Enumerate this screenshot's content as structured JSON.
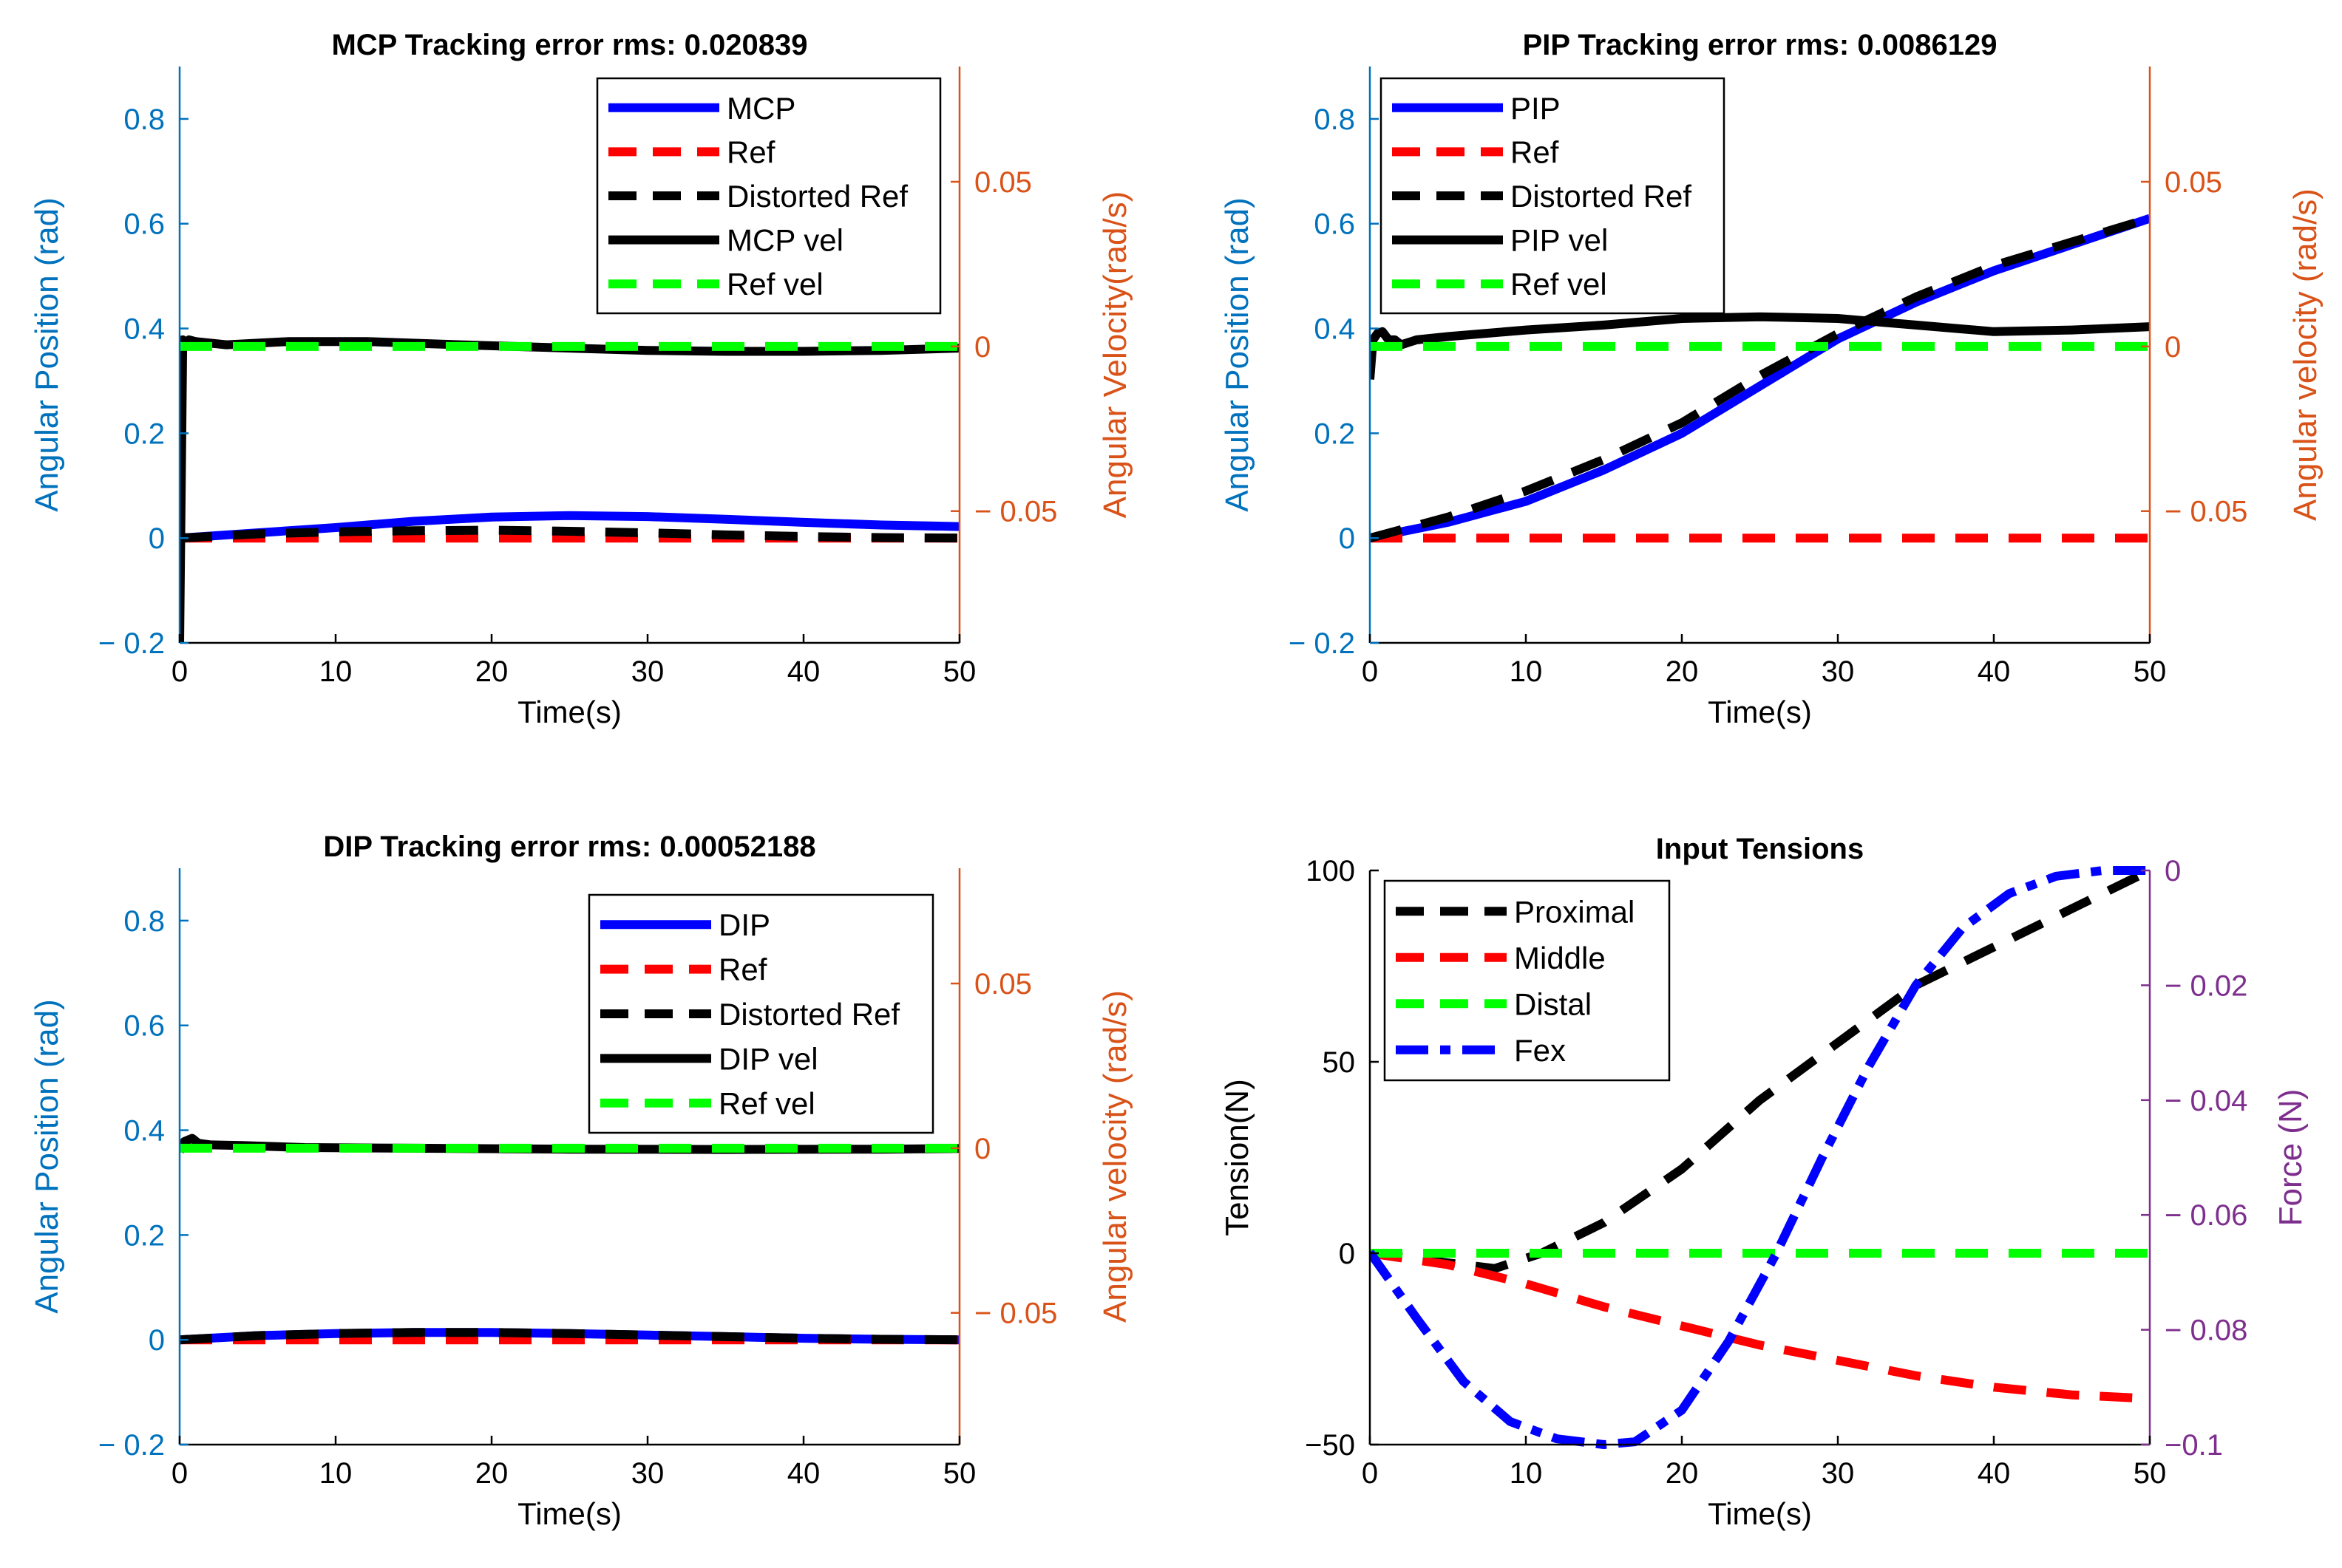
{
  "colors": {
    "blue": "#0000ff",
    "red": "#ff0000",
    "black": "#000000",
    "green": "#00ff00",
    "left_axis": "#0072bd",
    "right_axis": "#d95319",
    "force_axis": "#7e2f8e"
  },
  "chart_data": [
    {
      "id": "mcp",
      "type": "line",
      "title": "MCP Tracking error rms: 0.020839",
      "xlabel": "Time(s)",
      "ylabel": "Angular Position (rad)",
      "y2label": "Angular Velocity(rad/s)",
      "xlim": [
        0,
        50
      ],
      "ylim": [
        -0.2,
        0.9
      ],
      "y2lim": [
        -0.09,
        0.085
      ],
      "xticks": [
        0,
        10,
        20,
        30,
        40,
        50
      ],
      "xtick_labels": [
        "0",
        "10",
        "20",
        "30",
        "40",
        "50"
      ],
      "yticks": [
        -0.2,
        0,
        0.2,
        0.4,
        0.6,
        0.8
      ],
      "ytick_labels": [
        "− 0.2",
        "0",
        "0.2",
        "0.4",
        "0.6",
        "0.8"
      ],
      "y2ticks": [
        -0.05,
        0,
        0.05
      ],
      "y2tick_labels": [
        "− 0.05",
        "0",
        "0.05"
      ],
      "legend_position": "top-right",
      "series": [
        {
          "name": "MCP",
          "axis": "left",
          "color": "blue",
          "style": "solid",
          "x": [
            0,
            5,
            10,
            15,
            20,
            25,
            30,
            35,
            40,
            45,
            50
          ],
          "y": [
            0,
            0.01,
            0.02,
            0.032,
            0.04,
            0.043,
            0.041,
            0.036,
            0.03,
            0.025,
            0.022
          ]
        },
        {
          "name": "Ref",
          "axis": "left",
          "color": "red",
          "style": "dashed",
          "x": [
            0,
            50
          ],
          "y": [
            0,
            0
          ]
        },
        {
          "name": "Distorted Ref",
          "axis": "left",
          "color": "black",
          "style": "dashed",
          "x": [
            0,
            5,
            10,
            15,
            20,
            25,
            30,
            35,
            40,
            45,
            50
          ],
          "y": [
            0,
            0.008,
            0.012,
            0.014,
            0.015,
            0.013,
            0.01,
            0.006,
            0.003,
            0.001,
            0
          ]
        },
        {
          "name": "MCP vel",
          "axis": "right",
          "color": "black",
          "style": "solid",
          "x": [
            0,
            0.2,
            0.4,
            0.6,
            1,
            3,
            7,
            12,
            18,
            25,
            30,
            35,
            40,
            45,
            50
          ],
          "y": [
            -0.09,
            0.002,
            0.001,
            0.002,
            0.0015,
            0.0005,
            0.0015,
            0.0015,
            0.0005,
            -0.0005,
            -0.0012,
            -0.0015,
            -0.0015,
            -0.0012,
            -0.0005
          ]
        },
        {
          "name": "Ref vel",
          "axis": "right",
          "color": "green",
          "style": "dashed",
          "x": [
            0,
            50
          ],
          "y": [
            0,
            0
          ]
        }
      ]
    },
    {
      "id": "pip",
      "type": "line",
      "title": "PIP Tracking error rms: 0.0086129",
      "xlabel": "Time(s)",
      "ylabel": "Angular Position (rad)",
      "y2label": "Angular velocity (rad/s)",
      "xlim": [
        0,
        50
      ],
      "ylim": [
        -0.2,
        0.9
      ],
      "y2lim": [
        -0.09,
        0.085
      ],
      "xticks": [
        0,
        10,
        20,
        30,
        40,
        50
      ],
      "xtick_labels": [
        "0",
        "10",
        "20",
        "30",
        "40",
        "50"
      ],
      "yticks": [
        -0.2,
        0,
        0.2,
        0.4,
        0.6,
        0.8
      ],
      "ytick_labels": [
        "− 0.2",
        "0",
        "0.2",
        "0.4",
        "0.6",
        "0.8"
      ],
      "y2ticks": [
        -0.05,
        0,
        0.05
      ],
      "y2tick_labels": [
        "− 0.05",
        "0",
        "0.05"
      ],
      "legend_position": "top-left",
      "series": [
        {
          "name": "PIP",
          "axis": "left",
          "color": "blue",
          "style": "solid",
          "x": [
            0,
            5,
            10,
            15,
            20,
            25,
            30,
            35,
            40,
            45,
            50
          ],
          "y": [
            0,
            0.03,
            0.07,
            0.13,
            0.2,
            0.29,
            0.38,
            0.45,
            0.51,
            0.56,
            0.61
          ]
        },
        {
          "name": "Ref",
          "axis": "left",
          "color": "red",
          "style": "dashed",
          "x": [
            0,
            50
          ],
          "y": [
            0,
            0
          ]
        },
        {
          "name": "Distorted Ref",
          "axis": "left",
          "color": "black",
          "style": "dashed",
          "x": [
            0,
            5,
            10,
            15,
            20,
            25,
            30,
            35,
            40,
            45,
            50
          ],
          "y": [
            0,
            0.04,
            0.09,
            0.15,
            0.22,
            0.31,
            0.39,
            0.46,
            0.52,
            0.565,
            0.61
          ]
        },
        {
          "name": "PIP vel",
          "axis": "right",
          "color": "black",
          "style": "solid",
          "x": [
            0,
            0.2,
            0.5,
            0.8,
            1.2,
            1.6,
            2,
            3,
            5,
            10,
            15,
            20,
            25,
            30,
            35,
            40,
            45,
            50
          ],
          "y": [
            -0.01,
            0.002,
            0.004,
            0.0045,
            0.002,
            0.002,
            0.0005,
            0.002,
            0.003,
            0.005,
            0.0065,
            0.0085,
            0.009,
            0.0085,
            0.0065,
            0.0045,
            0.005,
            0.006
          ]
        },
        {
          "name": "Ref vel",
          "axis": "right",
          "color": "green",
          "style": "dashed",
          "x": [
            0,
            50
          ],
          "y": [
            0,
            0
          ]
        }
      ]
    },
    {
      "id": "dip",
      "type": "line",
      "title": "DIP Tracking error rms: 0.00052188",
      "xlabel": "Time(s)",
      "ylabel": "Angular Position (rad)",
      "y2label": "Angular velocity (rad/s)",
      "xlim": [
        0,
        50
      ],
      "ylim": [
        -0.2,
        0.9
      ],
      "y2lim": [
        -0.09,
        0.085
      ],
      "xticks": [
        0,
        10,
        20,
        30,
        40,
        50
      ],
      "xtick_labels": [
        "0",
        "10",
        "20",
        "30",
        "40",
        "50"
      ],
      "yticks": [
        -0.2,
        0,
        0.2,
        0.4,
        0.6,
        0.8
      ],
      "ytick_labels": [
        "− 0.2",
        "0",
        "0.2",
        "0.4",
        "0.6",
        "0.8"
      ],
      "y2ticks": [
        -0.05,
        0,
        0.05
      ],
      "y2tick_labels": [
        "− 0.05",
        "0",
        "0.05"
      ],
      "legend_position": "top-right",
      "series": [
        {
          "name": "DIP",
          "axis": "left",
          "color": "blue",
          "style": "solid",
          "x": [
            0,
            5,
            10,
            15,
            20,
            25,
            30,
            35,
            40,
            45,
            50
          ],
          "y": [
            0,
            0.008,
            0.012,
            0.014,
            0.014,
            0.012,
            0.009,
            0.006,
            0.003,
            0.001,
            0
          ]
        },
        {
          "name": "Ref",
          "axis": "left",
          "color": "red",
          "style": "dashed",
          "x": [
            0,
            50
          ],
          "y": [
            0,
            0
          ]
        },
        {
          "name": "Distorted Ref",
          "axis": "left",
          "color": "black",
          "style": "dashed",
          "x": [
            0,
            5,
            10,
            15,
            20,
            25,
            30,
            35,
            40,
            45,
            50
          ],
          "y": [
            0,
            0.008,
            0.012,
            0.014,
            0.014,
            0.012,
            0.009,
            0.006,
            0.003,
            0.001,
            0
          ]
        },
        {
          "name": "DIP vel",
          "axis": "right",
          "color": "black",
          "style": "solid",
          "x": [
            0,
            0.3,
            0.8,
            1.2,
            2,
            4,
            8,
            15,
            25,
            35,
            45,
            50
          ],
          "y": [
            -0.001,
            0.002,
            0.003,
            0.0015,
            0.001,
            0.0008,
            0.0002,
            0,
            -0.0003,
            -0.0004,
            -0.0003,
            -0.0001
          ]
        },
        {
          "name": "Ref vel",
          "axis": "right",
          "color": "green",
          "style": "dashed",
          "x": [
            0,
            50
          ],
          "y": [
            0,
            0
          ]
        }
      ]
    },
    {
      "id": "tensions",
      "type": "line",
      "title": "Input Tensions",
      "xlabel": "Time(s)",
      "ylabel": "Tension(N)",
      "y2label": "Force (N)",
      "xlim": [
        0,
        50
      ],
      "ylim": [
        -50,
        100
      ],
      "y2lim": [
        -0.1,
        0
      ],
      "xticks": [
        0,
        10,
        20,
        30,
        40,
        50
      ],
      "xtick_labels": [
        "0",
        "10",
        "20",
        "30",
        "40",
        "50"
      ],
      "yticks": [
        -50,
        0,
        50,
        100
      ],
      "ytick_labels": [
        "−50",
        "0",
        "50",
        "100"
      ],
      "y2ticks": [
        -0.1,
        -0.08,
        -0.06,
        -0.04,
        -0.02,
        0
      ],
      "y2tick_labels": [
        "−0.1",
        "− 0.08",
        "− 0.06",
        "− 0.04",
        "− 0.02",
        "0"
      ],
      "legend_position": "top-left",
      "series": [
        {
          "name": "Proximal",
          "axis": "left",
          "color": "black",
          "style": "dashed",
          "x": [
            0,
            4,
            8,
            11,
            15,
            20,
            25,
            30,
            35,
            40,
            45,
            50
          ],
          "y": [
            0,
            -2,
            -4,
            0,
            8,
            22,
            40,
            55,
            70,
            80,
            90,
            100
          ]
        },
        {
          "name": "Middle",
          "axis": "left",
          "color": "red",
          "style": "dashed",
          "x": [
            0,
            5,
            10,
            15,
            20,
            25,
            30,
            35,
            40,
            45,
            50
          ],
          "y": [
            0,
            -3,
            -8,
            -14,
            -19,
            -24,
            -28,
            -32,
            -35,
            -37,
            -38
          ]
        },
        {
          "name": "Distal",
          "axis": "left",
          "color": "green",
          "style": "dashed",
          "x": [
            0,
            50
          ],
          "y": [
            0,
            0
          ]
        },
        {
          "name": "Fex",
          "axis": "right",
          "color": "blue",
          "style": "dashdot",
          "x": [
            0,
            3,
            6,
            9,
            12,
            15,
            17,
            20,
            23,
            26,
            29,
            32,
            35,
            38,
            41,
            44,
            47,
            50
          ],
          "y": [
            -0.0665,
            -0.078,
            -0.089,
            -0.096,
            -0.099,
            -0.1,
            -0.0995,
            -0.094,
            -0.082,
            -0.067,
            -0.05,
            -0.034,
            -0.02,
            -0.01,
            -0.004,
            -0.001,
            0,
            0
          ]
        }
      ]
    }
  ]
}
